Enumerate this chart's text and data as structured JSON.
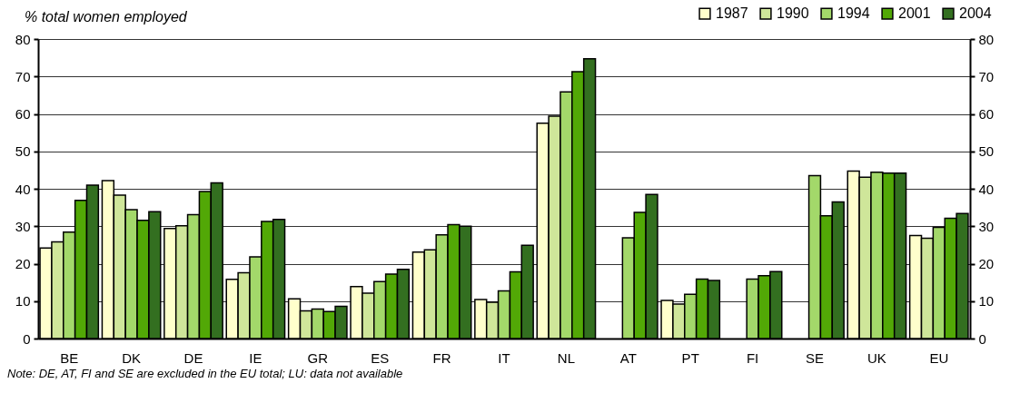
{
  "chart_data": {
    "type": "bar",
    "ylabel": "% total women employed",
    "categories": [
      "BE",
      "DK",
      "DE",
      "IE",
      "GR",
      "ES",
      "FR",
      "IT",
      "NL",
      "AT",
      "PT",
      "FI",
      "SE",
      "UK",
      "EU"
    ],
    "series": [
      {
        "name": "1987",
        "color": "#ffffcc",
        "values": [
          24.2,
          42.2,
          29.4,
          15.8,
          10.6,
          13.9,
          23.1,
          10.4,
          57.5,
          null,
          10.2,
          null,
          null,
          44.7,
          27.5
        ]
      },
      {
        "name": "1990",
        "color": "#cfe69a",
        "values": [
          25.8,
          38.3,
          30.1,
          17.6,
          7.4,
          12.1,
          23.7,
          9.7,
          59.4,
          null,
          9.2,
          null,
          null,
          43.1,
          26.8
        ]
      },
      {
        "name": "1994",
        "color": "#a3d86a",
        "values": [
          28.4,
          34.4,
          33.1,
          21.8,
          7.9,
          15.2,
          27.7,
          12.7,
          65.9,
          26.9,
          11.8,
          15.9,
          43.5,
          44.4,
          29.7
        ]
      },
      {
        "name": "2001",
        "color": "#52a806",
        "values": [
          36.9,
          31.6,
          39.3,
          31.3,
          7.2,
          17.2,
          30.4,
          17.8,
          71.3,
          33.7,
          15.9,
          16.8,
          32.8,
          44.2,
          32.1
        ]
      },
      {
        "name": "2004",
        "color": "#336f20",
        "values": [
          41.0,
          33.9,
          41.6,
          31.8,
          8.6,
          18.5,
          30.0,
          24.9,
          74.7,
          38.5,
          15.5,
          17.9,
          36.5,
          44.2,
          33.4
        ]
      }
    ],
    "ylim": [
      0,
      80
    ],
    "yticks": [
      0,
      10,
      20,
      30,
      40,
      50,
      60,
      70,
      80
    ],
    "y2lim": [
      0,
      80
    ],
    "y2ticks": [
      0,
      10,
      20,
      30,
      40,
      50,
      60,
      70,
      80
    ],
    "grid": "y",
    "legend": "top right",
    "annotations": [
      "Note: DE, AT, FI and SE are excluded in the EU total; LU: data not available"
    ]
  }
}
